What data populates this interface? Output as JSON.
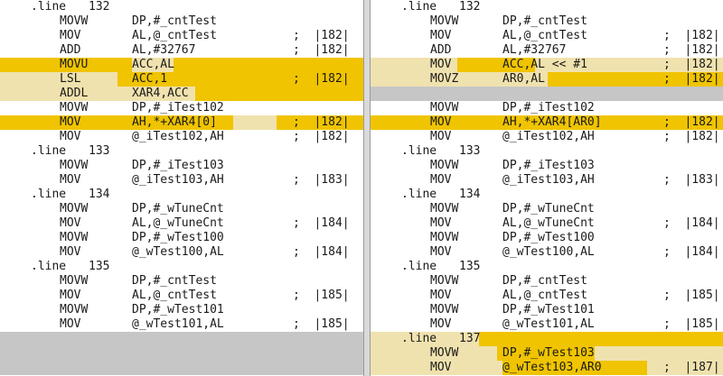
{
  "colors": {
    "highlight": "#f0c400",
    "highlight_light": "#f0e2ae",
    "gray_block": "#c6c6c6",
    "pane_bg": "#ffffff",
    "divider": "#d9d9d9"
  },
  "left": {
    "lines": [
      {
        "kind": "dir",
        "dir": ".line",
        "num": "132"
      },
      {
        "kind": "ins",
        "op": "MOVW",
        "arg": "DP,#_cntTest",
        "cm": ""
      },
      {
        "kind": "ins",
        "op": "MOV",
        "arg": "AL,@_cntTest",
        "cm": ";  |182|"
      },
      {
        "kind": "ins",
        "op": "ADD",
        "arg": "AL,#32767",
        "cm": ";  |182|"
      },
      {
        "kind": "ins",
        "op": "MOVU",
        "arg": "ACC,AL",
        "cm": "",
        "hl": [
          [
            0,
            402,
            "highlight"
          ],
          [
            146,
            192,
            "highlight_light"
          ]
        ]
      },
      {
        "kind": "ins",
        "op": "LSL",
        "arg": "ACC,1",
        "cm": ";  |182|",
        "hl": [
          [
            0,
            402,
            "highlight"
          ],
          [
            0,
            130,
            "highlight_light"
          ]
        ]
      },
      {
        "kind": "ins",
        "op": "ADDL",
        "arg": "XAR4,ACC",
        "cm": "",
        "hl": [
          [
            0,
            402,
            "highlight"
          ],
          [
            0,
            216,
            "highlight_light"
          ]
        ]
      },
      {
        "kind": "ins",
        "op": "MOVW",
        "arg": "DP,#_iTest102",
        "cm": ""
      },
      {
        "kind": "ins",
        "op": "MOV",
        "arg": "AH,*+XAR4[0]",
        "cm": ";  |182|",
        "hl": [
          [
            0,
            402,
            "highlight"
          ],
          [
            258,
            306,
            "highlight_light"
          ]
        ]
      },
      {
        "kind": "ins",
        "op": "MOV",
        "arg": "@_iTest102,AH",
        "cm": ";  |182|"
      },
      {
        "kind": "dir",
        "dir": ".line",
        "num": "133"
      },
      {
        "kind": "ins",
        "op": "MOVW",
        "arg": "DP,#_iTest103",
        "cm": ""
      },
      {
        "kind": "ins",
        "op": "MOV",
        "arg": "@_iTest103,AH",
        "cm": ";  |183|"
      },
      {
        "kind": "dir",
        "dir": ".line",
        "num": "134"
      },
      {
        "kind": "ins",
        "op": "MOVW",
        "arg": "DP,#_wTuneCnt",
        "cm": ""
      },
      {
        "kind": "ins",
        "op": "MOV",
        "arg": "AL,@_wTuneCnt",
        "cm": ";  |184|"
      },
      {
        "kind": "ins",
        "op": "MOVW",
        "arg": "DP,#_wTest100",
        "cm": ""
      },
      {
        "kind": "ins",
        "op": "MOV",
        "arg": "@_wTest100,AL",
        "cm": ";  |184|"
      },
      {
        "kind": "dir",
        "dir": ".line",
        "num": "135"
      },
      {
        "kind": "ins",
        "op": "MOVW",
        "arg": "DP,#_cntTest",
        "cm": ""
      },
      {
        "kind": "ins",
        "op": "MOV",
        "arg": "AL,@_cntTest",
        "cm": ";  |185|"
      },
      {
        "kind": "ins",
        "op": "MOVW",
        "arg": "DP,#_wTest101",
        "cm": ""
      },
      {
        "kind": "ins",
        "op": "MOV",
        "arg": "@_wTest101,AL",
        "cm": ";  |185|"
      },
      {
        "kind": "gray"
      },
      {
        "kind": "gray"
      },
      {
        "kind": "gray"
      }
    ]
  },
  "right": {
    "lines": [
      {
        "kind": "dir",
        "dir": ".line",
        "num": "132"
      },
      {
        "kind": "ins",
        "op": "MOVW",
        "arg": "DP,#_cntTest",
        "cm": ""
      },
      {
        "kind": "ins",
        "op": "MOV",
        "arg": "AL,@_cntTest",
        "cm": ";  |182|"
      },
      {
        "kind": "ins",
        "op": "ADD",
        "arg": "AL,#32767",
        "cm": ";  |182|"
      },
      {
        "kind": "ins",
        "op": "MOV",
        "arg": "ACC,AL << #1",
        "cm": ";  |182|",
        "hl": [
          [
            0,
            390,
            "highlight_light"
          ],
          [
            96,
            182,
            "highlight"
          ]
        ]
      },
      {
        "kind": "ins",
        "op": "MOVZ",
        "arg": "AR0,AL",
        "cm": ";  |182|",
        "hl": [
          [
            0,
            390,
            "highlight"
          ],
          [
            0,
            196,
            "highlight_light"
          ]
        ]
      },
      {
        "kind": "gray"
      },
      {
        "kind": "ins",
        "op": "MOVW",
        "arg": "DP,#_iTest102",
        "cm": ""
      },
      {
        "kind": "ins",
        "op": "MOV",
        "arg": "AH,*+XAR4[AR0]",
        "cm": ";  |182|",
        "hl": [
          [
            0,
            390,
            "highlight"
          ]
        ]
      },
      {
        "kind": "ins",
        "op": "MOV",
        "arg": "@_iTest102,AH",
        "cm": ";  |182|"
      },
      {
        "kind": "dir",
        "dir": ".line",
        "num": "133"
      },
      {
        "kind": "ins",
        "op": "MOVW",
        "arg": "DP,#_iTest103",
        "cm": ""
      },
      {
        "kind": "ins",
        "op": "MOV",
        "arg": "@_iTest103,AH",
        "cm": ";  |183|"
      },
      {
        "kind": "dir",
        "dir": ".line",
        "num": "134"
      },
      {
        "kind": "ins",
        "op": "MOVW",
        "arg": "DP,#_wTuneCnt",
        "cm": ""
      },
      {
        "kind": "ins",
        "op": "MOV",
        "arg": "AL,@_wTuneCnt",
        "cm": ";  |184|"
      },
      {
        "kind": "ins",
        "op": "MOVW",
        "arg": "DP,#_wTest100",
        "cm": ""
      },
      {
        "kind": "ins",
        "op": "MOV",
        "arg": "@_wTest100,AL",
        "cm": ";  |184|"
      },
      {
        "kind": "dir",
        "dir": ".line",
        "num": "135"
      },
      {
        "kind": "ins",
        "op": "MOVW",
        "arg": "DP,#_cntTest",
        "cm": ""
      },
      {
        "kind": "ins",
        "op": "MOV",
        "arg": "AL,@_cntTest",
        "cm": ";  |185|"
      },
      {
        "kind": "ins",
        "op": "MOVW",
        "arg": "DP,#_wTest101",
        "cm": ""
      },
      {
        "kind": "ins",
        "op": "MOV",
        "arg": "@_wTest101,AL",
        "cm": ";  |185|"
      },
      {
        "kind": "dir",
        "dir": ".line",
        "num": "137",
        "hl": [
          [
            0,
            390,
            "highlight_light"
          ],
          [
            120,
            390,
            "highlight"
          ]
        ]
      },
      {
        "kind": "ins",
        "op": "MOVW",
        "arg": "DP,#_wTest103",
        "cm": "",
        "hl": [
          [
            0,
            390,
            "highlight_light"
          ],
          [
            140,
            248,
            "highlight"
          ]
        ]
      },
      {
        "kind": "ins",
        "op": "MOV",
        "arg": "@_wTest103,AR0",
        "cm": ";  |187|",
        "hl": [
          [
            0,
            390,
            "highlight_light"
          ],
          [
            146,
            306,
            "highlight"
          ]
        ]
      }
    ]
  }
}
